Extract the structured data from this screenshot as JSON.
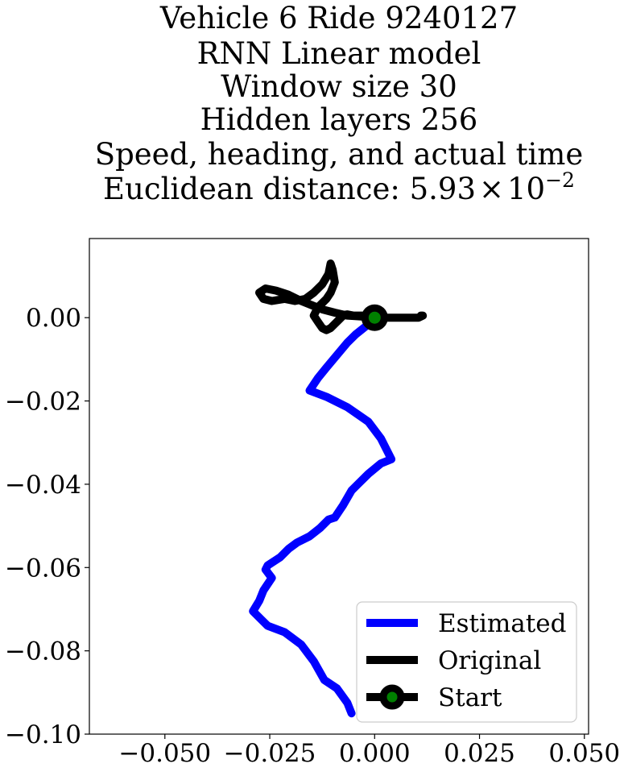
{
  "chart_data": {
    "type": "line",
    "title_lines": [
      "Vehicle 6 Ride 9240127",
      "RNN Linear model",
      "Window size 30",
      "Hidden layers 256",
      "Speed, heading, and actual time"
    ],
    "title_metric": {
      "prefix": "Euclidean distance: ",
      "mantissa": "5.93",
      "times": "×",
      "base": "10",
      "exponent": "−2"
    },
    "xlabel": "",
    "ylabel": "",
    "xlim": [
      -0.068,
      0.051
    ],
    "ylim": [
      -0.1,
      0.019
    ],
    "x_ticks": [
      -0.05,
      -0.025,
      0.0,
      0.025,
      0.05
    ],
    "x_tick_labels": [
      "−0.050",
      "−0.025",
      "0.000",
      "0.025",
      "0.050"
    ],
    "y_ticks": [
      0.0,
      -0.02,
      -0.04,
      -0.06,
      -0.08,
      -0.1
    ],
    "y_tick_labels": [
      "0.00",
      "−0.02",
      "−0.04",
      "−0.06",
      "−0.08",
      "−0.10"
    ],
    "grid": false,
    "legend_position": "lower-right",
    "series": [
      {
        "name": "Estimated",
        "color": "#0000ff",
        "points": [
          [
            0,
            0
          ],
          [
            -0.002,
            -0.002
          ],
          [
            -0.0045,
            -0.004
          ],
          [
            -0.0065,
            -0.006
          ],
          [
            -0.009,
            -0.009
          ],
          [
            -0.0115,
            -0.012
          ],
          [
            -0.0135,
            -0.0145
          ],
          [
            -0.0155,
            -0.0175
          ],
          [
            -0.0115,
            -0.019
          ],
          [
            -0.0065,
            -0.0215
          ],
          [
            -0.0015,
            -0.025
          ],
          [
            0.0015,
            -0.029
          ],
          [
            0.004,
            -0.034
          ],
          [
            0.0015,
            -0.035
          ],
          [
            -0.0015,
            -0.0375
          ],
          [
            -0.004,
            -0.04
          ],
          [
            -0.0055,
            -0.0415
          ],
          [
            -0.0075,
            -0.045
          ],
          [
            -0.0095,
            -0.048
          ],
          [
            -0.011,
            -0.0485
          ],
          [
            -0.013,
            -0.0505
          ],
          [
            -0.0155,
            -0.0525
          ],
          [
            -0.0185,
            -0.054
          ],
          [
            -0.0205,
            -0.0555
          ],
          [
            -0.0225,
            -0.0575
          ],
          [
            -0.0255,
            -0.0595
          ],
          [
            -0.026,
            -0.0605
          ],
          [
            -0.0245,
            -0.0625
          ],
          [
            -0.0265,
            -0.0655
          ],
          [
            -0.0275,
            -0.068
          ],
          [
            -0.029,
            -0.0705
          ],
          [
            -0.027,
            -0.0725
          ],
          [
            -0.0255,
            -0.074
          ],
          [
            -0.0215,
            -0.0755
          ],
          [
            -0.0175,
            -0.0785
          ],
          [
            -0.0145,
            -0.0825
          ],
          [
            -0.012,
            -0.087
          ],
          [
            -0.009,
            -0.089
          ],
          [
            -0.0065,
            -0.0925
          ],
          [
            -0.0055,
            -0.095
          ]
        ]
      },
      {
        "name": "Original",
        "color": "#000000",
        "points": [
          [
            0.011,
            0.0005
          ],
          [
            0.0115,
            0.0005
          ],
          [
            0.0105,
            0.0
          ],
          [
            0.005,
            0.0
          ],
          [
            0.0,
            0.0
          ],
          [
            -0.003,
            0.0005
          ],
          [
            -0.005,
            0.0005
          ],
          [
            -0.0065,
            0.0008
          ],
          [
            -0.0075,
            0.0005
          ],
          [
            -0.0085,
            -0.0005
          ],
          [
            -0.0095,
            -0.0015
          ],
          [
            -0.0105,
            -0.0025
          ],
          [
            -0.0115,
            -0.003
          ],
          [
            -0.0125,
            -0.0025
          ],
          [
            -0.0135,
            -0.001
          ],
          [
            -0.0145,
            0.0005
          ],
          [
            -0.0135,
            0.0025
          ],
          [
            -0.0115,
            0.0045
          ],
          [
            -0.0105,
            0.006
          ],
          [
            -0.0095,
            0.0085
          ],
          [
            -0.01,
            0.0115
          ],
          [
            -0.0105,
            0.013
          ],
          [
            -0.011,
            0.0105
          ],
          [
            -0.0125,
            0.008
          ],
          [
            -0.0145,
            0.006
          ],
          [
            -0.0165,
            0.0045
          ],
          [
            -0.019,
            0.004
          ],
          [
            -0.0215,
            0.0045
          ],
          [
            -0.0245,
            0.004
          ],
          [
            -0.0265,
            0.0045
          ],
          [
            -0.0275,
            0.006
          ],
          [
            -0.026,
            0.007
          ],
          [
            -0.0235,
            0.0065
          ],
          [
            -0.0205,
            0.0055
          ],
          [
            -0.0175,
            0.004
          ],
          [
            -0.015,
            0.003
          ],
          [
            -0.0125,
            0.002
          ],
          [
            -0.0095,
            0.0012
          ],
          [
            -0.0065,
            0.0005
          ],
          [
            -0.0035,
            0.0003
          ],
          [
            0.0,
            0.0
          ]
        ]
      }
    ],
    "start_marker": {
      "name": "Start",
      "x": 0.0,
      "y": 0.0,
      "edge_color": "#000000",
      "face_color": "#008000"
    }
  }
}
